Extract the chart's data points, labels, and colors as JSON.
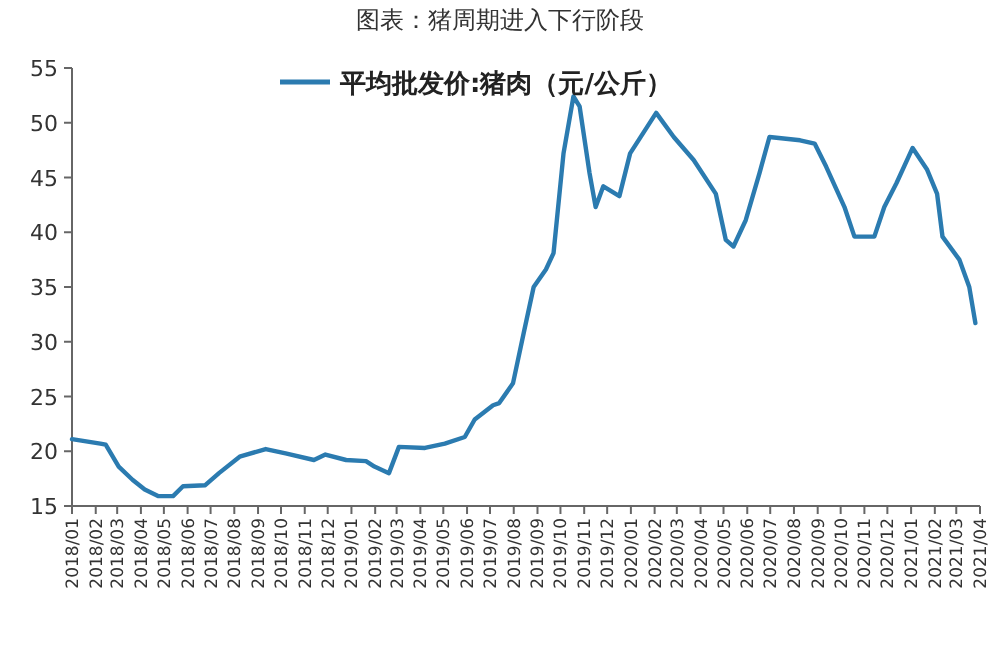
{
  "chart_data": {
    "type": "line",
    "title": "图表：猪周期进入下行阶段",
    "x": [
      "2018-01-01",
      "2018-02-07",
      "2018-02-14",
      "2018-03-03",
      "2018-03-21",
      "2018-04-06",
      "2018-04-24",
      "2018-05-13",
      "2018-05-26",
      "2018-06-24",
      "2018-07-12",
      "2018-08-08",
      "2018-09-11",
      "2018-10-07",
      "2018-11-13",
      "2018-11-28",
      "2018-12-25",
      "2019-01-20",
      "2019-01-31",
      "2019-02-19",
      "2019-03-04",
      "2019-04-07",
      "2019-05-03",
      "2019-05-29",
      "2019-06-11",
      "2019-07-05",
      "2019-07-13",
      "2019-07-31",
      "2019-08-14",
      "2019-08-27",
      "2019-09-12",
      "2019-09-22",
      "2019-10-05",
      "2019-10-18",
      "2019-10-26",
      "2019-11-08",
      "2019-11-16",
      "2019-11-26",
      "2019-12-17",
      "2019-12-31",
      "2020-02-03",
      "2020-02-26",
      "2020-03-23",
      "2020-04-21",
      "2020-05-04",
      "2020-05-14",
      "2020-05-30",
      "2020-06-17",
      "2020-06-30",
      "2020-08-09",
      "2020-08-28",
      "2020-09-12",
      "2020-10-06",
      "2020-10-19",
      "2020-11-14",
      "2020-11-27",
      "2020-12-13",
      "2021-01-03",
      "2021-01-22",
      "2021-02-04",
      "2021-02-11",
      "2021-03-05",
      "2021-03-18",
      "2021-03-26"
    ],
    "series": [
      {
        "name": "平均批发价:猪肉（元/公斤）",
        "color": "#2b7bb0",
        "values": [
          21.1,
          20.7,
          20.6,
          18.6,
          17.4,
          16.5,
          15.9,
          15.9,
          16.8,
          16.9,
          18.0,
          19.5,
          20.2,
          19.8,
          19.2,
          19.7,
          19.2,
          19.1,
          18.6,
          18.0,
          20.4,
          20.3,
          20.7,
          21.3,
          22.9,
          24.2,
          24.4,
          26.2,
          30.8,
          35.0,
          36.6,
          38.1,
          47.2,
          52.4,
          51.5,
          45.4,
          42.3,
          44.2,
          43.3,
          47.2,
          50.9,
          48.7,
          46.6,
          43.5,
          39.3,
          38.7,
          41.1,
          45.4,
          48.7,
          48.4,
          48.1,
          46.0,
          42.3,
          39.6,
          39.6,
          42.3,
          44.5,
          47.7,
          45.7,
          43.5,
          39.6,
          37.5,
          35.0,
          31.7
        ]
      }
    ],
    "xlim": [
      "2018-01",
      "2021-04"
    ],
    "xticks": [
      {
        "value": "2018-01",
        "label": "2018/01"
      },
      {
        "value": "2018-02",
        "label": "2018/02"
      },
      {
        "value": "2018-03",
        "label": "2018/03"
      },
      {
        "value": "2018-04",
        "label": "2018/04"
      },
      {
        "value": "2018-05",
        "label": "2018/05"
      },
      {
        "value": "2018-06",
        "label": "2018/06"
      },
      {
        "value": "2018-07",
        "label": "2018/07"
      },
      {
        "value": "2018-08",
        "label": "2018/08"
      },
      {
        "value": "2018-09",
        "label": "2018/09"
      },
      {
        "value": "2018-10",
        "label": "2018/10"
      },
      {
        "value": "2018-11",
        "label": "2018/11"
      },
      {
        "value": "2018-12",
        "label": "2018/12"
      },
      {
        "value": "2019-01",
        "label": "2019/01"
      },
      {
        "value": "2019-02",
        "label": "2019/02"
      },
      {
        "value": "2019-03",
        "label": "2019/03"
      },
      {
        "value": "2019-04",
        "label": "2019/04"
      },
      {
        "value": "2019-05",
        "label": "2019/05"
      },
      {
        "value": "2019-06",
        "label": "2019/06"
      },
      {
        "value": "2019-07",
        "label": "2019/07"
      },
      {
        "value": "2019-08",
        "label": "2019/08"
      },
      {
        "value": "2019-09",
        "label": "2019/09"
      },
      {
        "value": "2019-10",
        "label": "2019/10"
      },
      {
        "value": "2019-11",
        "label": "2019/11"
      },
      {
        "value": "2019-12",
        "label": "2019/12"
      },
      {
        "value": "2020-01",
        "label": "2020/01"
      },
      {
        "value": "2020-02",
        "label": "2020/02"
      },
      {
        "value": "2020-03",
        "label": "2020/03"
      },
      {
        "value": "2020-04",
        "label": "2020/04"
      },
      {
        "value": "2020-05",
        "label": "2020/05"
      },
      {
        "value": "2020-06",
        "label": "2020/06"
      },
      {
        "value": "2020-07",
        "label": "2020/07"
      },
      {
        "value": "2020-08",
        "label": "2020/08"
      },
      {
        "value": "2020-09",
        "label": "2020/09"
      },
      {
        "value": "2020-10",
        "label": "2020/10"
      },
      {
        "value": "2020-11",
        "label": "2020/11"
      },
      {
        "value": "2020-12",
        "label": "2020/12"
      },
      {
        "value": "2021-01",
        "label": "2021/01"
      },
      {
        "value": "2021-02",
        "label": "2021/02"
      },
      {
        "value": "2021-03",
        "label": "2021/03"
      },
      {
        "value": "2021-04",
        "label": "2021/04"
      }
    ],
    "ylim": [
      15,
      55
    ],
    "yticks": [
      15,
      20,
      25,
      30,
      35,
      40,
      45,
      50,
      55
    ],
    "grid": false,
    "legend": "top",
    "marker": "none",
    "line_style": "solid"
  }
}
